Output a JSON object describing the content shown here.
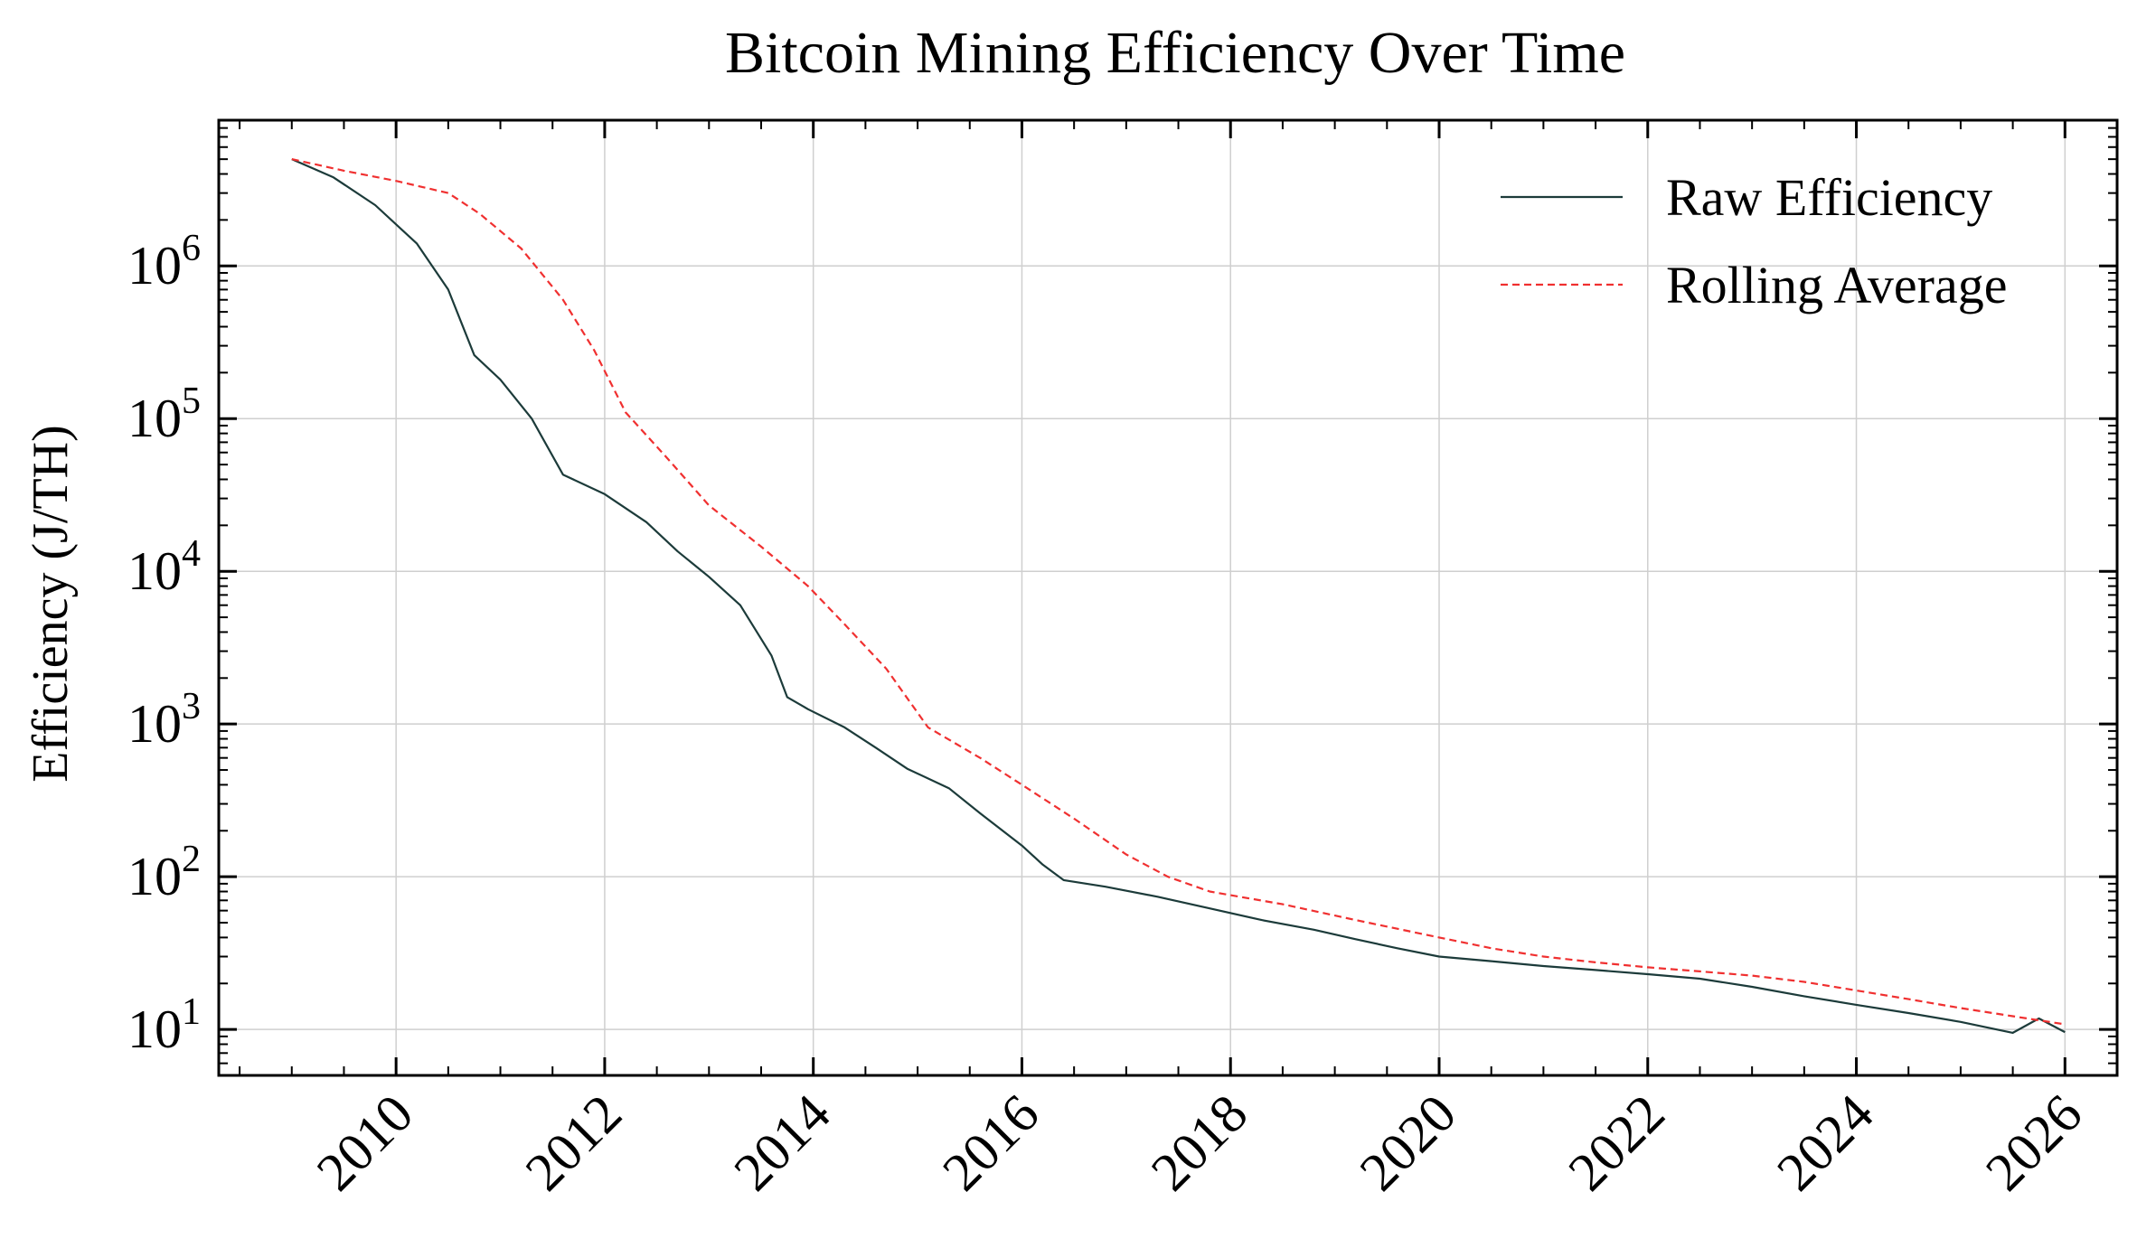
{
  "chart_data": {
    "type": "line",
    "title": "Bitcoin Mining Efficiency Over Time",
    "xlabel": "",
    "ylabel": "Efficiency (J/TH)",
    "yscale": "log",
    "xlim": [
      2008.3,
      2026.5
    ],
    "ylim": [
      5,
      9000000
    ],
    "x_ticks": [
      2010,
      2012,
      2014,
      2016,
      2018,
      2020,
      2022,
      2024,
      2026
    ],
    "x_tick_labels": [
      "2010",
      "2012",
      "2014",
      "2016",
      "2018",
      "2020",
      "2022",
      "2024",
      "2026"
    ],
    "y_ticks": [
      {
        "value": 10,
        "base": "10",
        "exp": "1"
      },
      {
        "value": 100,
        "base": "10",
        "exp": "2"
      },
      {
        "value": 1000,
        "base": "10",
        "exp": "3"
      },
      {
        "value": 10000,
        "base": "10",
        "exp": "4"
      },
      {
        "value": 100000,
        "base": "10",
        "exp": "5"
      },
      {
        "value": 1000000,
        "base": "10",
        "exp": "6"
      }
    ],
    "grid": true,
    "legend_position": "top-right",
    "series": [
      {
        "name": "Raw Efficiency",
        "color": "#1c3b3a",
        "style": "solid",
        "points": [
          [
            2009.0,
            5000000
          ],
          [
            2009.4,
            3800000
          ],
          [
            2009.8,
            2500000
          ],
          [
            2010.2,
            1400000
          ],
          [
            2010.5,
            700000
          ],
          [
            2010.75,
            260000
          ],
          [
            2011.0,
            180000
          ],
          [
            2011.3,
            100000
          ],
          [
            2011.6,
            43000
          ],
          [
            2012.0,
            32000
          ],
          [
            2012.4,
            21000
          ],
          [
            2012.7,
            13500
          ],
          [
            2013.0,
            9200
          ],
          [
            2013.3,
            6000
          ],
          [
            2013.6,
            2800
          ],
          [
            2013.75,
            1500
          ],
          [
            2013.95,
            1250
          ],
          [
            2014.3,
            950
          ],
          [
            2014.6,
            700
          ],
          [
            2014.9,
            510
          ],
          [
            2015.3,
            380
          ],
          [
            2015.6,
            260
          ],
          [
            2016.0,
            160
          ],
          [
            2016.2,
            120
          ],
          [
            2016.4,
            95
          ],
          [
            2016.8,
            86
          ],
          [
            2017.3,
            74
          ],
          [
            2017.8,
            62
          ],
          [
            2018.3,
            52
          ],
          [
            2018.8,
            45
          ],
          [
            2019.2,
            39
          ],
          [
            2019.6,
            34
          ],
          [
            2020.0,
            30
          ],
          [
            2020.5,
            28
          ],
          [
            2021.0,
            26
          ],
          [
            2021.5,
            24.5
          ],
          [
            2022.0,
            23
          ],
          [
            2022.5,
            21.5
          ],
          [
            2023.0,
            19
          ],
          [
            2023.5,
            16.5
          ],
          [
            2024.0,
            14.5
          ],
          [
            2024.5,
            12.8
          ],
          [
            2025.0,
            11.2
          ],
          [
            2025.5,
            9.5
          ],
          [
            2025.75,
            11.8
          ],
          [
            2026.0,
            9.6
          ]
        ]
      },
      {
        "name": "Rolling Average",
        "color": "#f03030",
        "style": "dashed",
        "points": [
          [
            2009.0,
            5000000
          ],
          [
            2009.5,
            4200000
          ],
          [
            2010.0,
            3600000
          ],
          [
            2010.5,
            3000000
          ],
          [
            2010.8,
            2200000
          ],
          [
            2011.2,
            1300000
          ],
          [
            2011.6,
            600000
          ],
          [
            2011.9,
            280000
          ],
          [
            2012.2,
            110000
          ],
          [
            2012.6,
            55000
          ],
          [
            2013.0,
            27000
          ],
          [
            2013.5,
            14500
          ],
          [
            2013.95,
            8000
          ],
          [
            2014.3,
            4500
          ],
          [
            2014.7,
            2300
          ],
          [
            2015.1,
            950
          ],
          [
            2015.6,
            600
          ],
          [
            2016.0,
            400
          ],
          [
            2016.5,
            240
          ],
          [
            2017.0,
            140
          ],
          [
            2017.4,
            100
          ],
          [
            2017.8,
            80
          ],
          [
            2018.5,
            66
          ],
          [
            2019.2,
            52
          ],
          [
            2020.0,
            40
          ],
          [
            2020.5,
            34
          ],
          [
            2021.0,
            30
          ],
          [
            2021.5,
            27.5
          ],
          [
            2022.0,
            25.5
          ],
          [
            2022.5,
            24
          ],
          [
            2023.0,
            22.5
          ],
          [
            2023.5,
            20.5
          ],
          [
            2024.0,
            18
          ],
          [
            2024.5,
            15.8
          ],
          [
            2025.0,
            13.8
          ],
          [
            2025.5,
            12.2
          ],
          [
            2026.0,
            10.8
          ]
        ]
      }
    ]
  }
}
